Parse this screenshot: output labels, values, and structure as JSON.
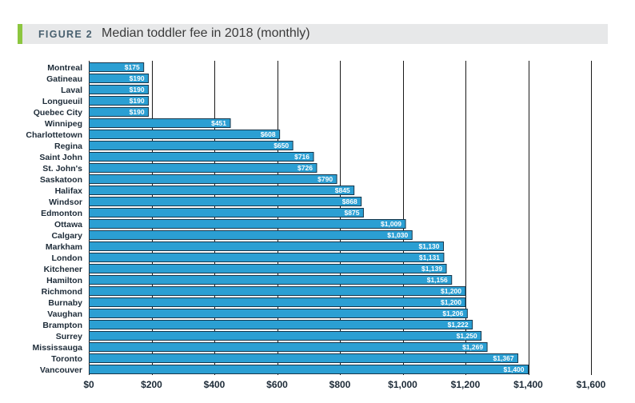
{
  "figure": {
    "label": "FIGURE 2"
  },
  "chart_data": {
    "type": "bar",
    "orientation": "horizontal",
    "title": "Median toddler fee in 2018 (monthly)",
    "categories": [
      "Montreal",
      "Gatineau",
      "Laval",
      "Longueuil",
      "Quebec City",
      "Winnipeg",
      "Charlottetown",
      "Regina",
      "Saint John",
      "St. John's",
      "Saskatoon",
      "Halifax",
      "Windsor",
      "Edmonton",
      "Ottawa",
      "Calgary",
      "Markham",
      "London",
      "Kitchener",
      "Hamilton",
      "Richmond",
      "Burnaby",
      "Vaughan",
      "Brampton",
      "Surrey",
      "Mississauga",
      "Toronto",
      "Vancouver"
    ],
    "values": [
      175,
      190,
      190,
      190,
      190,
      451,
      608,
      650,
      716,
      726,
      790,
      845,
      868,
      875,
      1009,
      1030,
      1130,
      1131,
      1139,
      1156,
      1200,
      1200,
      1206,
      1222,
      1250,
      1269,
      1367,
      1400
    ],
    "value_labels": [
      "$175",
      "$190",
      "$190",
      "$190",
      "$190",
      "$451",
      "$608",
      "$650",
      "$716",
      "$726",
      "$790",
      "$845",
      "$868",
      "$875",
      "$1,009",
      "$1,030",
      "$1,130",
      "$1,131",
      "$1,139",
      "$1,156",
      "$1,200",
      "$1,200",
      "$1,206",
      "$1,222",
      "$1,250",
      "$1,269",
      "$1,367",
      "$1,400"
    ],
    "xticks": [
      0,
      200,
      400,
      600,
      800,
      1000,
      1200,
      1400,
      1600
    ],
    "xtick_labels": [
      "$0",
      "$200",
      "$400",
      "$600",
      "$800",
      "$1,000",
      "$1,200",
      "$1,400",
      "$1,600"
    ],
    "xlim": [
      0,
      1600
    ],
    "grid": true,
    "colors": {
      "bar": "#2b9fd3",
      "bar_outline": "#17364b",
      "grid": "#1a1a1a",
      "accent": "#8cc63f",
      "header_bg": "#e7e8e9"
    }
  }
}
